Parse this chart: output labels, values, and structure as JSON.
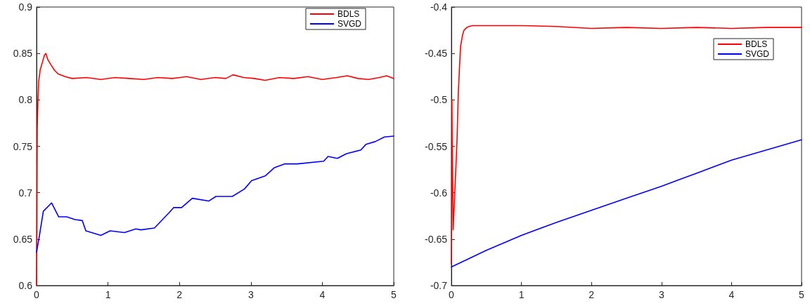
{
  "chart_data": [
    {
      "type": "line",
      "xlim": [
        0,
        5
      ],
      "xticks": [
        0,
        1,
        2,
        3,
        4,
        5
      ],
      "ylim": [
        0.6,
        0.9
      ],
      "yticks": [
        0.6,
        0.65,
        0.7,
        0.75,
        0.8,
        0.85,
        0.9
      ],
      "grid": false,
      "legend": "top right",
      "marker": "none",
      "line_style": "solid",
      "series": [
        {
          "name": "BDLS",
          "color": "#ff0000",
          "x": [
            0,
            0.005,
            0.01,
            0.02,
            0.03,
            0.05,
            0.08,
            0.11,
            0.13,
            0.16,
            0.2,
            0.25,
            0.3,
            0.4,
            0.5,
            0.7,
            0.9,
            1.1,
            1.3,
            1.5,
            1.7,
            1.9,
            2.1,
            2.3,
            2.5,
            2.65,
            2.75,
            2.9,
            3.05,
            3.2,
            3.4,
            3.6,
            3.8,
            4.0,
            4.2,
            4.35,
            4.5,
            4.65,
            4.8,
            4.9,
            5
          ],
          "values": [
            0.6,
            0.66,
            0.77,
            0.8,
            0.82,
            0.832,
            0.84,
            0.848,
            0.85,
            0.843,
            0.838,
            0.832,
            0.828,
            0.825,
            0.823,
            0.824,
            0.822,
            0.824,
            0.823,
            0.822,
            0.824,
            0.823,
            0.825,
            0.822,
            0.824,
            0.823,
            0.827,
            0.824,
            0.823,
            0.821,
            0.824,
            0.823,
            0.825,
            0.822,
            0.824,
            0.826,
            0.823,
            0.822,
            0.824,
            0.826,
            0.823
          ]
        },
        {
          "name": "SVGD",
          "color": "#0000ff",
          "x": [
            0,
            0.03,
            0.095,
            0.21,
            0.31,
            0.42,
            0.54,
            0.64,
            0.69,
            0.9,
            1.03,
            1.23,
            1.39,
            1.46,
            1.65,
            1.85,
            1.92,
            2.03,
            2.18,
            2.41,
            2.51,
            2.74,
            2.91,
            3.01,
            3.2,
            3.33,
            3.47,
            3.65,
            4.02,
            4.08,
            4.21,
            4.34,
            4.54,
            4.61,
            4.74,
            4.87,
            5
          ],
          "values": [
            0.636,
            0.649,
            0.68,
            0.689,
            0.674,
            0.674,
            0.671,
            0.67,
            0.659,
            0.654,
            0.659,
            0.657,
            0.661,
            0.66,
            0.662,
            0.678,
            0.684,
            0.684,
            0.694,
            0.691,
            0.696,
            0.696,
            0.704,
            0.713,
            0.718,
            0.727,
            0.731,
            0.731,
            0.734,
            0.739,
            0.737,
            0.742,
            0.746,
            0.752,
            0.755,
            0.76,
            0.761
          ]
        }
      ]
    },
    {
      "type": "line",
      "xlim": [
        0,
        5
      ],
      "xticks": [
        0,
        1,
        2,
        3,
        4,
        5
      ],
      "ylim": [
        -0.7,
        -0.4
      ],
      "yticks": [
        -0.7,
        -0.65,
        -0.6,
        -0.55,
        -0.5,
        -0.45,
        -0.4
      ],
      "grid": false,
      "legend": "top right",
      "marker": "none",
      "line_style": "solid",
      "series": [
        {
          "name": "BDLS",
          "color": "#ff0000",
          "x": [
            0,
            0.008,
            0.012,
            0.025,
            0.04,
            0.06,
            0.08,
            0.1,
            0.13,
            0.16,
            0.18,
            0.22,
            0.25,
            0.3,
            0.5,
            1,
            1.5,
            2,
            2.5,
            3,
            3.5,
            4,
            4.5,
            5
          ],
          "values": [
            -0.677,
            -0.5,
            -0.55,
            -0.64,
            -0.615,
            -0.58,
            -0.544,
            -0.49,
            -0.443,
            -0.43,
            -0.425,
            -0.422,
            -0.421,
            -0.42,
            -0.42,
            -0.42,
            -0.421,
            -0.423,
            -0.422,
            -0.423,
            -0.422,
            -0.423,
            -0.422,
            -0.422
          ]
        },
        {
          "name": "SVGD",
          "color": "#0000ff",
          "x": [
            0,
            0.5,
            1,
            1.5,
            2,
            2.5,
            3,
            3.5,
            4,
            4.5,
            5
          ],
          "values": [
            -0.68,
            -0.662,
            -0.646,
            -0.632,
            -0.619,
            -0.606,
            -0.593,
            -0.579,
            -0.565,
            -0.554,
            -0.543
          ]
        }
      ]
    }
  ]
}
